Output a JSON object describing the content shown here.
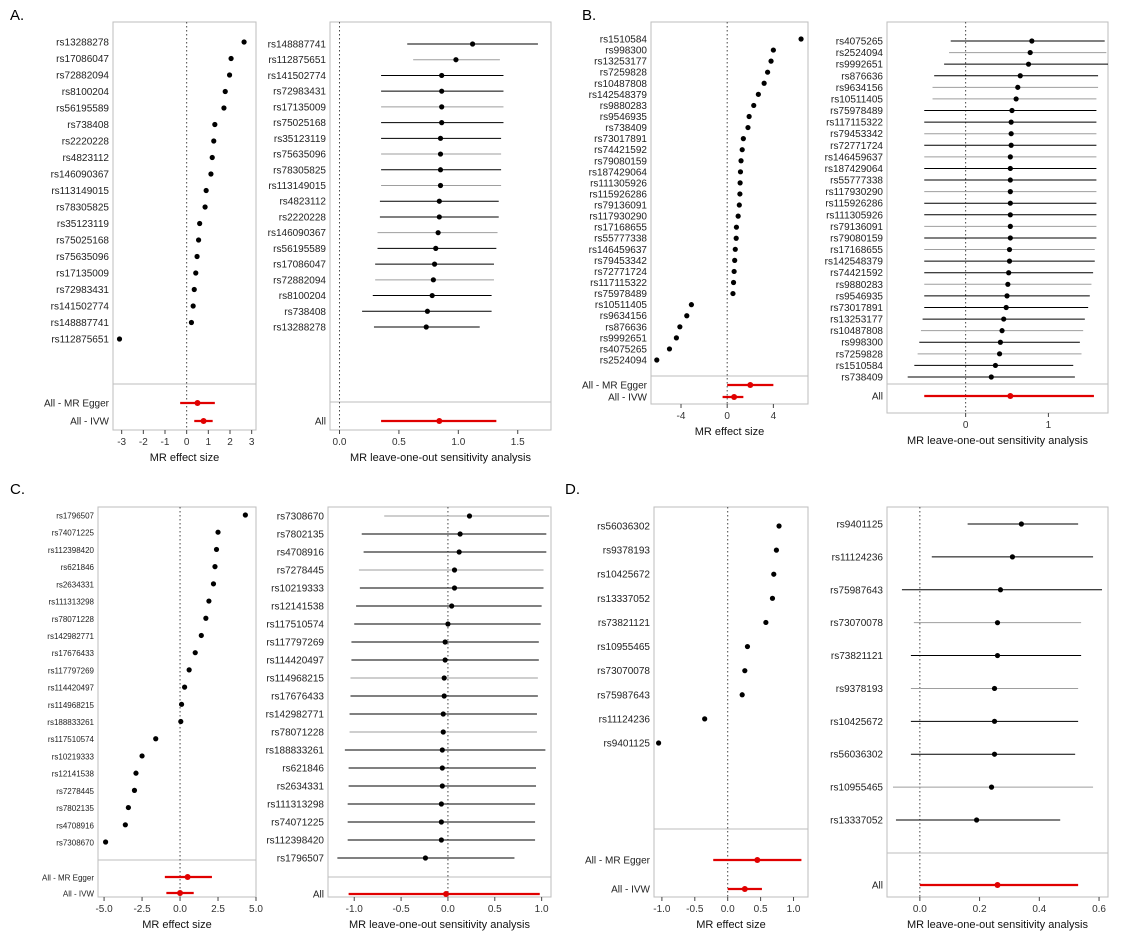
{
  "panel_labels": [
    "A.",
    "B.",
    "C.",
    "D."
  ],
  "colors": {
    "point": "#000000",
    "ci": "#000000",
    "ci_alt": "#9e9e9e",
    "summary": "#e00000",
    "frame": "#bdbdbd",
    "zero_line": "#444444"
  },
  "chart_data": [
    {
      "id": "A-effect",
      "type": "forest",
      "xlabel": "MR effect size",
      "xlim": [
        -3.4,
        3.2
      ],
      "xticks": [
        -3,
        -2,
        -1,
        0,
        1,
        2,
        3
      ],
      "tick_labels": [
        "-3",
        "-2",
        "-1",
        "0",
        "1",
        "2",
        "3"
      ],
      "snps": [
        "rs13288278",
        "rs17086047",
        "rs72882094",
        "rs8100204",
        "rs56195589",
        "rs738408",
        "rs2220228",
        "rs4823112",
        "rs146090367",
        "rs113149015",
        "rs78305825",
        "rs35123119",
        "rs75025168",
        "rs75635096",
        "rs17135009",
        "rs72983431",
        "rs141502774",
        "rs148887741",
        "rs112875651"
      ],
      "values": [
        2.65,
        2.05,
        1.98,
        1.78,
        1.72,
        1.3,
        1.25,
        1.18,
        1.12,
        0.9,
        0.85,
        0.6,
        0.55,
        0.48,
        0.42,
        0.35,
        0.3,
        0.22,
        -3.1
      ],
      "summary": [
        {
          "label": "All - MR Egger",
          "value": 0.5,
          "lo": -0.3,
          "hi": 1.3
        },
        {
          "label": "All - IVW",
          "value": 0.78,
          "lo": 0.35,
          "hi": 1.2
        }
      ]
    },
    {
      "id": "A-loo",
      "type": "forest",
      "xlabel": "MR leave-one-out sensitivity analysis",
      "xlim": [
        -0.08,
        1.78
      ],
      "xticks": [
        0,
        0.5,
        1,
        1.5
      ],
      "tick_labels": [
        "0.0",
        "0.5",
        "1.0",
        "1.5"
      ],
      "snps": [
        "rs148887741",
        "rs112875651",
        "rs141502774",
        "rs72983431",
        "rs17135009",
        "rs75025168",
        "rs35123119",
        "rs75635096",
        "rs78305825",
        "rs113149015",
        "rs4823112",
        "rs2220228",
        "rs146090367",
        "rs56195589",
        "rs17086047",
        "rs72882094",
        "rs8100204",
        "rs738408",
        "rs13288278"
      ],
      "values": [
        1.12,
        0.98,
        0.86,
        0.86,
        0.86,
        0.86,
        0.85,
        0.85,
        0.85,
        0.85,
        0.84,
        0.84,
        0.83,
        0.81,
        0.8,
        0.79,
        0.78,
        0.74,
        0.73
      ],
      "lo": [
        0.57,
        0.62,
        0.35,
        0.35,
        0.35,
        0.35,
        0.35,
        0.35,
        0.35,
        0.35,
        0.34,
        0.34,
        0.32,
        0.32,
        0.3,
        0.3,
        0.28,
        0.19,
        0.29
      ],
      "hi": [
        1.67,
        1.35,
        1.38,
        1.38,
        1.38,
        1.38,
        1.36,
        1.36,
        1.36,
        1.36,
        1.34,
        1.34,
        1.33,
        1.32,
        1.3,
        1.3,
        1.28,
        1.28,
        1.18
      ],
      "gray": [
        false,
        true,
        false,
        false,
        true,
        false,
        false,
        true,
        false,
        true,
        false,
        false,
        true,
        false,
        false,
        true,
        false,
        false,
        false
      ],
      "summary": [
        {
          "label": "All",
          "value": 0.84,
          "lo": 0.35,
          "hi": 1.32
        }
      ]
    },
    {
      "id": "B-effect",
      "type": "forest",
      "xlabel": "MR effect size",
      "xlim": [
        -6.6,
        7.0
      ],
      "xticks": [
        -4,
        0,
        4
      ],
      "tick_labels": [
        "-4",
        "0",
        "4"
      ],
      "snps": [
        "rs1510584",
        "rs998300",
        "rs13253177",
        "rs7259828",
        "rs10487808",
        "rs142548379",
        "rs9880283",
        "rs9546935",
        "rs738409",
        "rs73017891",
        "rs74421592",
        "rs79080159",
        "rs187429064",
        "rs111305926",
        "rs115926286",
        "rs79136091",
        "rs117930290",
        "rs17168655",
        "rs55777338",
        "rs146459637",
        "rs79453342",
        "rs72771724",
        "rs117115322",
        "rs75978489",
        "rs10511405",
        "rs9634156",
        "rs876636",
        "rs9992651",
        "rs4075265",
        "rs2524094"
      ],
      "values": [
        6.4,
        4.0,
        3.8,
        3.5,
        3.2,
        2.7,
        2.3,
        1.9,
        1.8,
        1.4,
        1.3,
        1.2,
        1.15,
        1.12,
        1.1,
        1.05,
        0.95,
        0.8,
        0.78,
        0.7,
        0.65,
        0.6,
        0.55,
        0.5,
        -3.1,
        -3.5,
        -4.1,
        -4.4,
        -5.0,
        -6.1
      ],
      "summary": [
        {
          "label": "All - MR Egger",
          "value": 2.0,
          "lo": 0.0,
          "hi": 4.0
        },
        {
          "label": "All - IVW",
          "value": 0.6,
          "lo": -0.4,
          "hi": 1.4
        }
      ]
    },
    {
      "id": "B-loo",
      "type": "forest",
      "xlabel": "MR leave-one-out sensitivity analysis",
      "xlim": [
        -0.95,
        1.72
      ],
      "xticks": [
        0,
        1
      ],
      "tick_labels": [
        "0",
        "1"
      ],
      "snps": [
        "rs4075265",
        "rs2524094",
        "rs9992651",
        "rs876636",
        "rs9634156",
        "rs10511405",
        "rs75978489",
        "rs117115322",
        "rs79453342",
        "rs72771724",
        "rs146459637",
        "rs187429064",
        "rs55777338",
        "rs117930290",
        "rs115926286",
        "rs111305926",
        "rs79136091",
        "rs79080159",
        "rs17168655",
        "rs142548379",
        "rs74421592",
        "rs9880283",
        "rs9546935",
        "rs73017891",
        "rs13253177",
        "rs10487808",
        "rs998300",
        "rs7259828",
        "rs1510584",
        "rs738409"
      ],
      "values": [
        0.8,
        0.78,
        0.76,
        0.66,
        0.63,
        0.61,
        0.56,
        0.55,
        0.55,
        0.55,
        0.54,
        0.54,
        0.54,
        0.54,
        0.54,
        0.54,
        0.54,
        0.54,
        0.53,
        0.53,
        0.52,
        0.51,
        0.5,
        0.49,
        0.46,
        0.44,
        0.42,
        0.41,
        0.36,
        0.31
      ],
      "lo": [
        -0.18,
        -0.2,
        -0.26,
        -0.38,
        -0.4,
        -0.4,
        -0.5,
        -0.5,
        -0.5,
        -0.5,
        -0.5,
        -0.5,
        -0.5,
        -0.5,
        -0.5,
        -0.5,
        -0.5,
        -0.5,
        -0.5,
        -0.5,
        -0.5,
        -0.5,
        -0.5,
        -0.5,
        -0.52,
        -0.54,
        -0.56,
        -0.58,
        -0.62,
        -0.7
      ],
      "hi": [
        1.68,
        1.7,
        1.72,
        1.6,
        1.6,
        1.58,
        1.58,
        1.58,
        1.58,
        1.58,
        1.58,
        1.58,
        1.58,
        1.58,
        1.58,
        1.58,
        1.58,
        1.58,
        1.56,
        1.56,
        1.54,
        1.52,
        1.5,
        1.48,
        1.44,
        1.42,
        1.38,
        1.4,
        1.3,
        1.32
      ],
      "gray": [
        false,
        true,
        false,
        false,
        true,
        true,
        false,
        false,
        true,
        false,
        true,
        false,
        false,
        true,
        false,
        false,
        true,
        false,
        true,
        false,
        false,
        true,
        false,
        false,
        false,
        true,
        false,
        true,
        false,
        false
      ],
      "summary": [
        {
          "label": "All",
          "value": 0.54,
          "lo": -0.5,
          "hi": 1.55
        }
      ]
    },
    {
      "id": "C-effect",
      "type": "forest",
      "xlabel": "MR effect size",
      "xlim": [
        -5.4,
        5.0
      ],
      "xticks": [
        -5,
        -2.5,
        0,
        2.5,
        5
      ],
      "tick_labels": [
        "-5.0",
        "-2.5",
        "0.0",
        "2.5",
        "5.0"
      ],
      "snps": [
        "rs1796507",
        "rs74071225",
        "rs112398420",
        "rs621846",
        "rs2634331",
        "rs111313298",
        "rs78071228",
        "rs142982771",
        "rs17676433",
        "rs117797269",
        "rs114420497",
        "rs114968215",
        "rs188833261",
        "rs117510574",
        "rs10219333",
        "rs12141538",
        "rs7278445",
        "rs7802135",
        "rs4708916",
        "rs7308670"
      ],
      "values": [
        4.3,
        2.5,
        2.4,
        2.3,
        2.2,
        1.9,
        1.7,
        1.4,
        1.0,
        0.6,
        0.3,
        0.1,
        0.05,
        -1.6,
        -2.5,
        -2.9,
        -3.0,
        -3.4,
        -3.6,
        -4.9
      ],
      "summary": [
        {
          "label": "All - MR Egger",
          "value": 0.5,
          "lo": -1.0,
          "hi": 2.1
        },
        {
          "label": "All - IVW",
          "value": 0.0,
          "lo": -0.9,
          "hi": 0.9
        }
      ]
    },
    {
      "id": "C-loo",
      "type": "forest",
      "xlabel": "MR leave-one-out sensitivity analysis",
      "xlim": [
        -1.28,
        1.1
      ],
      "xticks": [
        -1.0,
        -0.5,
        0.0,
        0.5,
        1.0
      ],
      "tick_labels": [
        "-1.0",
        "-0.5",
        "0.0",
        "0.5",
        "1.0"
      ],
      "snps": [
        "rs7308670",
        "rs7802135",
        "rs4708916",
        "rs7278445",
        "rs10219333",
        "rs12141538",
        "rs117510574",
        "rs117797269",
        "rs114420497",
        "rs114968215",
        "rs17676433",
        "rs142982771",
        "rs78071228",
        "rs188833261",
        "rs621846",
        "rs2634331",
        "rs111313298",
        "rs74071225",
        "rs112398420",
        "rs1796507"
      ],
      "values": [
        0.23,
        0.13,
        0.12,
        0.07,
        0.07,
        0.04,
        0.0,
        -0.03,
        -0.03,
        -0.04,
        -0.04,
        -0.05,
        -0.05,
        -0.06,
        -0.06,
        -0.06,
        -0.07,
        -0.07,
        -0.07,
        -0.24
      ],
      "lo": [
        -0.68,
        -0.92,
        -0.9,
        -0.95,
        -0.94,
        -0.98,
        -1.0,
        -1.03,
        -1.03,
        -1.04,
        -1.04,
        -1.05,
        -1.05,
        -1.1,
        -1.06,
        -1.06,
        -1.07,
        -1.07,
        -1.07,
        -1.18
      ],
      "hi": [
        1.08,
        1.05,
        1.05,
        1.02,
        1.02,
        1.0,
        0.99,
        0.97,
        0.97,
        0.96,
        0.96,
        0.95,
        0.95,
        1.04,
        0.94,
        0.94,
        0.93,
        0.93,
        0.93,
        0.71
      ],
      "gray": [
        true,
        false,
        false,
        true,
        false,
        false,
        false,
        false,
        false,
        true,
        false,
        false,
        true,
        false,
        false,
        false,
        false,
        false,
        false,
        false
      ],
      "summary": [
        {
          "label": "All",
          "value": -0.02,
          "lo": -1.06,
          "hi": 0.98
        }
      ]
    },
    {
      "id": "D-effect",
      "type": "forest",
      "xlabel": "MR effect size",
      "xlim": [
        -1.12,
        1.22
      ],
      "xticks": [
        -1.0,
        -0.5,
        0.0,
        0.5,
        1.0
      ],
      "tick_labels": [
        "-1.0",
        "-0.5",
        "0.0",
        "0.5",
        "1.0"
      ],
      "snps": [
        "rs56036302",
        "rs9378193",
        "rs10425672",
        "rs13337052",
        "rs73821121",
        "rs10955465",
        "rs73070078",
        "rs75987643",
        "rs11124236",
        "rs9401125"
      ],
      "values": [
        0.78,
        0.74,
        0.7,
        0.68,
        0.58,
        0.3,
        0.26,
        0.22,
        -0.35,
        -1.05
      ],
      "summary": [
        {
          "label": "All - MR Egger",
          "value": 0.45,
          "lo": -0.22,
          "hi": 1.12
        },
        {
          "label": "All - IVW",
          "value": 0.26,
          "lo": 0.0,
          "hi": 0.52
        }
      ]
    },
    {
      "id": "D-loo",
      "type": "forest",
      "xlabel": "MR leave-one-out sensitivity analysis",
      "xlim": [
        -0.11,
        0.63
      ],
      "xticks": [
        0,
        0.2,
        0.4,
        0.6
      ],
      "tick_labels": [
        "0.0",
        "0.2",
        "0.4",
        "0.6"
      ],
      "snps": [
        "rs9401125",
        "rs11124236",
        "rs75987643",
        "rs73070078",
        "rs73821121",
        "rs9378193",
        "rs10425672",
        "rs56036302",
        "rs10955465",
        "rs13337052"
      ],
      "values": [
        0.34,
        0.31,
        0.27,
        0.26,
        0.26,
        0.25,
        0.25,
        0.25,
        0.24,
        0.19
      ],
      "lo": [
        0.16,
        0.04,
        -0.06,
        -0.02,
        -0.03,
        -0.03,
        -0.03,
        -0.03,
        -0.09,
        -0.08
      ],
      "hi": [
        0.53,
        0.58,
        0.61,
        0.54,
        0.54,
        0.53,
        0.53,
        0.52,
        0.58,
        0.47
      ],
      "gray": [
        false,
        false,
        false,
        true,
        false,
        true,
        false,
        false,
        true,
        false
      ],
      "summary": [
        {
          "label": "All",
          "value": 0.26,
          "lo": 0.0,
          "hi": 0.53
        }
      ]
    }
  ]
}
